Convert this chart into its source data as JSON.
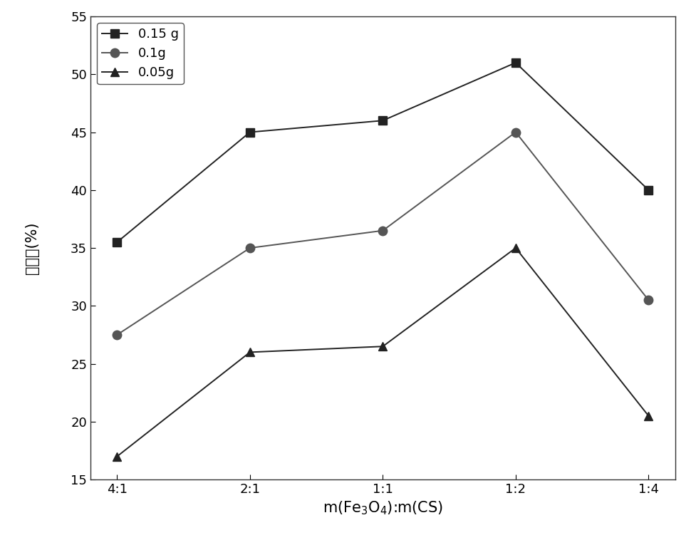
{
  "x_labels": [
    "4:1",
    "2:1",
    "1:1",
    "1:2",
    "1:4"
  ],
  "series": [
    {
      "label": "0.15 g",
      "y": [
        35.5,
        45.0,
        46.0,
        51.0,
        40.0
      ],
      "color": "#222222",
      "marker": "s",
      "linestyle": "-"
    },
    {
      "label": "0.1g",
      "y": [
        27.5,
        35.0,
        36.5,
        45.0,
        30.5
      ],
      "color": "#555555",
      "marker": "o",
      "linestyle": "-"
    },
    {
      "label": "0.05g",
      "y": [
        17.0,
        26.0,
        26.5,
        35.0,
        20.5
      ],
      "color": "#222222",
      "marker": "^",
      "linestyle": "-"
    }
  ],
  "ylabel_ascii": "去除率(%)",
  "ylim": [
    15,
    55
  ],
  "yticks": [
    15,
    20,
    25,
    30,
    35,
    40,
    45,
    50,
    55
  ],
  "background_color": "#ffffff",
  "legend_loc": "upper left",
  "label_fontsize": 15,
  "tick_fontsize": 13,
  "legend_fontsize": 13,
  "linewidth": 1.4,
  "markersize": 9
}
